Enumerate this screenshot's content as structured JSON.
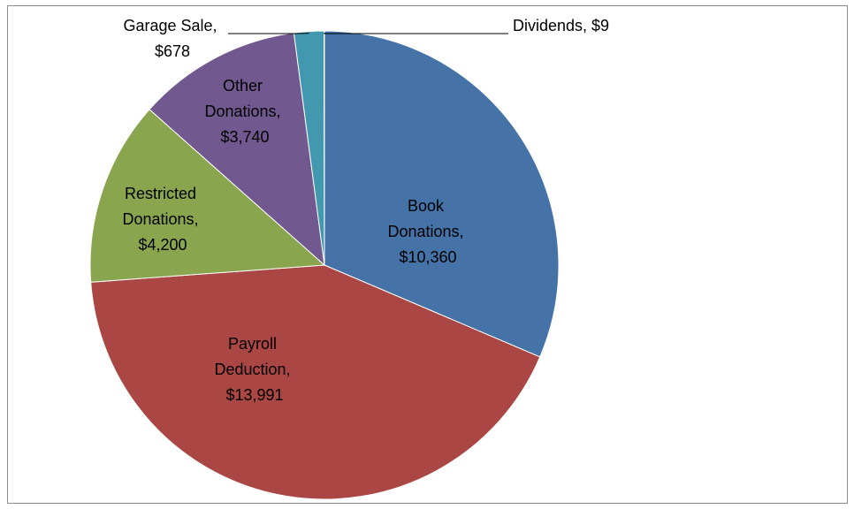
{
  "chart_data": {
    "type": "pie",
    "values": [
      10360,
      13991,
      4200,
      3740,
      678,
      9
    ],
    "value_labels": [
      "Book Donations, $10,360",
      "Payroll Deduction, $13,991",
      "Restricted Donations, $4,200",
      "Other Donations, $3,740",
      "Garage Sale, $678",
      "Dividends, $9"
    ],
    "colors": [
      "#4572a7",
      "#aa4643",
      "#89a54e",
      "#71588f",
      "#4198af",
      "#db843d"
    ]
  }
}
